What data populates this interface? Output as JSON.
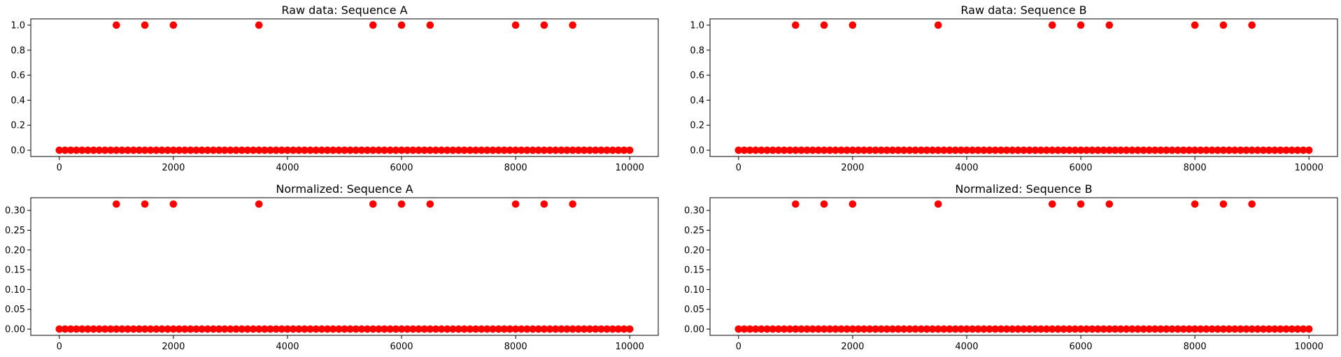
{
  "chart_data": [
    {
      "type": "scatter",
      "title": "Raw data: Sequence A",
      "xlabel": "",
      "ylabel": "",
      "xlim": [
        -500,
        10500
      ],
      "ylim": [
        -0.05,
        1.05
      ],
      "xticks": [
        0,
        2000,
        4000,
        6000,
        8000,
        10000
      ],
      "xtick_labels": [
        "0",
        "2000",
        "4000",
        "6000",
        "8000",
        "10000"
      ],
      "yticks": [
        0.0,
        0.2,
        0.4,
        0.6,
        0.8,
        1.0
      ],
      "ytick_labels": [
        "0.0",
        "0.2",
        "0.4",
        "0.6",
        "0.8",
        "1.0"
      ],
      "grid": false,
      "marker_color": "#ff0000",
      "series": [
        {
          "x": [
            1000,
            1500,
            2000,
            3500,
            5500,
            6000,
            6500,
            8000,
            8500,
            9000
          ],
          "y": [
            1.0,
            1.0,
            1.0,
            1.0,
            1.0,
            1.0,
            1.0,
            1.0,
            1.0,
            1.0
          ]
        },
        {
          "x_range": [
            0,
            10000
          ],
          "y": 0.0
        }
      ]
    },
    {
      "type": "scatter",
      "title": "Raw data: Sequence B",
      "xlabel": "",
      "ylabel": "",
      "xlim": [
        -500,
        10500
      ],
      "ylim": [
        -0.05,
        1.05
      ],
      "xticks": [
        0,
        2000,
        4000,
        6000,
        8000,
        10000
      ],
      "xtick_labels": [
        "0",
        "2000",
        "4000",
        "6000",
        "8000",
        "10000"
      ],
      "yticks": [
        0.0,
        0.2,
        0.4,
        0.6,
        0.8,
        1.0
      ],
      "ytick_labels": [
        "0.0",
        "0.2",
        "0.4",
        "0.6",
        "0.8",
        "1.0"
      ],
      "grid": false,
      "marker_color": "#ff0000",
      "series": [
        {
          "x": [
            1000,
            1500,
            2000,
            3500,
            5500,
            6000,
            6500,
            8000,
            8500,
            9000
          ],
          "y": [
            1.0,
            1.0,
            1.0,
            1.0,
            1.0,
            1.0,
            1.0,
            1.0,
            1.0,
            1.0
          ]
        },
        {
          "x_range": [
            0,
            10000
          ],
          "y": 0.0
        }
      ]
    },
    {
      "type": "scatter",
      "title": "Normalized: Sequence A",
      "xlabel": "",
      "ylabel": "",
      "xlim": [
        -500,
        10500
      ],
      "ylim": [
        -0.0158,
        0.3321
      ],
      "xticks": [
        0,
        2000,
        4000,
        6000,
        8000,
        10000
      ],
      "xtick_labels": [
        "0",
        "2000",
        "4000",
        "6000",
        "8000",
        "10000"
      ],
      "yticks": [
        0.0,
        0.05,
        0.1,
        0.15,
        0.2,
        0.25,
        0.3
      ],
      "ytick_labels": [
        "0.00",
        "0.05",
        "0.10",
        "0.15",
        "0.20",
        "0.25",
        "0.30"
      ],
      "grid": false,
      "marker_color": "#ff0000",
      "series": [
        {
          "x": [
            1000,
            1500,
            2000,
            3500,
            5500,
            6000,
            6500,
            8000,
            8500,
            9000
          ],
          "y": [
            0.316,
            0.316,
            0.316,
            0.316,
            0.316,
            0.316,
            0.316,
            0.316,
            0.316,
            0.316
          ]
        },
        {
          "x_range": [
            0,
            10000
          ],
          "y": 0.0
        }
      ]
    },
    {
      "type": "scatter",
      "title": "Normalized: Sequence B",
      "xlabel": "",
      "ylabel": "",
      "xlim": [
        -500,
        10500
      ],
      "ylim": [
        -0.0158,
        0.3321
      ],
      "xticks": [
        0,
        2000,
        4000,
        6000,
        8000,
        10000
      ],
      "xtick_labels": [
        "0",
        "2000",
        "4000",
        "6000",
        "8000",
        "10000"
      ],
      "yticks": [
        0.0,
        0.05,
        0.1,
        0.15,
        0.2,
        0.25,
        0.3
      ],
      "ytick_labels": [
        "0.00",
        "0.05",
        "0.10",
        "0.15",
        "0.20",
        "0.25",
        "0.30"
      ],
      "grid": false,
      "marker_color": "#ff0000",
      "series": [
        {
          "x": [
            1000,
            1500,
            2000,
            3500,
            5500,
            6000,
            6500,
            8000,
            8500,
            9000
          ],
          "y": [
            0.316,
            0.316,
            0.316,
            0.316,
            0.316,
            0.316,
            0.316,
            0.316,
            0.316,
            0.316
          ]
        },
        {
          "x_range": [
            0,
            10000
          ],
          "y": 0.0
        }
      ]
    }
  ]
}
